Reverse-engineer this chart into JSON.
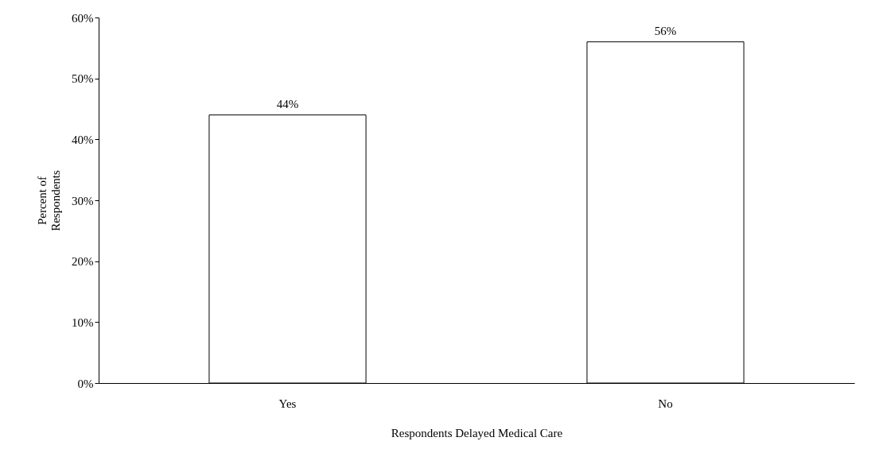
{
  "chart_data": {
    "type": "bar",
    "xlabel": "Respondents Delayed Medical Care",
    "ylabel": "Percent of Respondents",
    "categories": [
      "Yes",
      "No"
    ],
    "values": [
      44,
      56
    ],
    "value_labels": [
      "44%",
      "56%"
    ],
    "color": "#ffffff",
    "ylim": [
      0,
      60
    ],
    "yticks": [
      {
        "value": 0,
        "label": "0%"
      },
      {
        "value": 10,
        "label": "10%"
      },
      {
        "value": 20,
        "label": "20%"
      },
      {
        "value": 30,
        "label": "30%"
      },
      {
        "value": 40,
        "label": "40%"
      },
      {
        "value": 50,
        "label": "50%"
      },
      {
        "value": 60,
        "label": "60%"
      }
    ],
    "grid": false
  }
}
